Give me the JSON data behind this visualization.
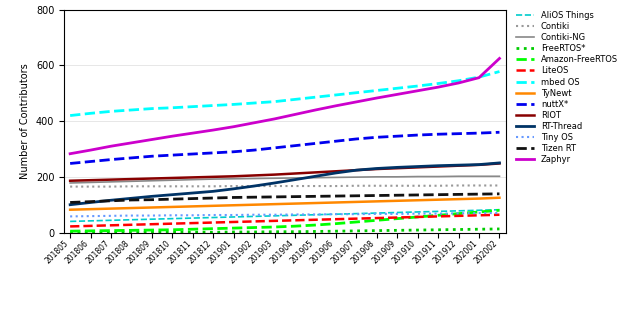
{
  "x_labels": [
    "201805",
    "201806",
    "201807",
    "201808",
    "201809",
    "201810",
    "201811",
    "201812",
    "201901",
    "201902",
    "201903",
    "201904",
    "201905",
    "201906",
    "201907",
    "201908",
    "201909",
    "201910",
    "201911",
    "201912",
    "202001",
    "202002"
  ],
  "series": {
    "AliOS Things": {
      "color": "#00CCCC",
      "linestyle": "--",
      "linewidth": 1.2,
      "values": [
        40,
        42,
        44,
        46,
        48,
        50,
        52,
        54,
        56,
        58,
        60,
        62,
        64,
        66,
        68,
        70,
        72,
        74,
        76,
        78,
        80,
        82
      ]
    },
    "Contiki": {
      "color": "#999999",
      "linestyle": ":",
      "linewidth": 1.5,
      "values": [
        165,
        165,
        165,
        166,
        166,
        166,
        166,
        166,
        167,
        167,
        167,
        167,
        167,
        167,
        168,
        168,
        168,
        168,
        168,
        169,
        169,
        169
      ]
    },
    "Contiki-NG": {
      "color": "#888888",
      "linestyle": "-",
      "linewidth": 1.2,
      "values": [
        178,
        180,
        182,
        184,
        186,
        188,
        190,
        192,
        193,
        194,
        195,
        196,
        197,
        198,
        199,
        200,
        200,
        201,
        201,
        202,
        202,
        202
      ]
    },
    "FreeRTOS*": {
      "color": "#00CC00",
      "linestyle": ":",
      "linewidth": 2.0,
      "values": [
        0,
        0,
        0,
        0,
        1,
        1,
        1,
        1,
        2,
        2,
        3,
        3,
        4,
        5,
        6,
        7,
        8,
        9,
        10,
        11,
        12,
        13
      ]
    },
    "Amazon-FreeRTOS": {
      "color": "#00FF00",
      "linestyle": "--",
      "linewidth": 2.0,
      "values": [
        5,
        6,
        7,
        8,
        9,
        10,
        12,
        14,
        16,
        18,
        20,
        23,
        27,
        32,
        38,
        44,
        50,
        56,
        62,
        68,
        74,
        80
      ]
    },
    "LiteOS": {
      "color": "#FF0000",
      "linestyle": "--",
      "linewidth": 1.8,
      "values": [
        22,
        24,
        26,
        28,
        30,
        32,
        34,
        36,
        38,
        40,
        42,
        44,
        46,
        48,
        50,
        52,
        54,
        56,
        58,
        60,
        62,
        64
      ]
    },
    "mbed OS": {
      "color": "#00FFFF",
      "linestyle": "--",
      "linewidth": 2.0,
      "values": [
        420,
        428,
        435,
        440,
        445,
        448,
        452,
        456,
        460,
        465,
        470,
        478,
        486,
        494,
        502,
        510,
        518,
        526,
        535,
        545,
        558,
        578
      ]
    },
    "TyNewt": {
      "color": "#FF8800",
      "linestyle": "-",
      "linewidth": 1.8,
      "values": [
        82,
        84,
        86,
        88,
        90,
        92,
        94,
        96,
        98,
        100,
        102,
        104,
        106,
        108,
        110,
        112,
        114,
        116,
        118,
        120,
        122,
        125
      ]
    },
    "nuttX*": {
      "color": "#0000EE",
      "linestyle": "--",
      "linewidth": 2.0,
      "values": [
        248,
        255,
        262,
        268,
        274,
        278,
        282,
        286,
        290,
        296,
        304,
        312,
        320,
        328,
        336,
        342,
        346,
        350,
        353,
        355,
        357,
        360
      ]
    },
    "RIOT": {
      "color": "#880000",
      "linestyle": "-",
      "linewidth": 1.8,
      "values": [
        186,
        188,
        190,
        192,
        194,
        196,
        198,
        200,
        202,
        205,
        208,
        212,
        216,
        220,
        224,
        228,
        231,
        234,
        237,
        240,
        243,
        248
      ]
    },
    "RT-Thread": {
      "color": "#003366",
      "linestyle": "-",
      "linewidth": 2.0,
      "values": [
        100,
        108,
        116,
        123,
        130,
        136,
        142,
        148,
        157,
        167,
        178,
        190,
        202,
        214,
        224,
        230,
        234,
        237,
        240,
        242,
        244,
        250
      ]
    },
    "Tiny OS": {
      "color": "#6699FF",
      "linestyle": ":",
      "linewidth": 1.5,
      "values": [
        58,
        59,
        60,
        61,
        61,
        62,
        62,
        63,
        63,
        64,
        64,
        65,
        65,
        66,
        66,
        67,
        67,
        68,
        68,
        69,
        70,
        70
      ]
    },
    "Tizen RT": {
      "color": "#111111",
      "linestyle": "--",
      "linewidth": 2.0,
      "values": [
        108,
        111,
        114,
        117,
        118,
        120,
        122,
        124,
        126,
        127,
        128,
        129,
        130,
        131,
        132,
        133,
        134,
        135,
        136,
        137,
        138,
        139
      ]
    },
    "Zaphyr": {
      "color": "#CC00CC",
      "linestyle": "-",
      "linewidth": 2.0,
      "values": [
        283,
        296,
        310,
        322,
        334,
        346,
        357,
        368,
        380,
        394,
        408,
        424,
        440,
        455,
        469,
        483,
        496,
        509,
        522,
        537,
        556,
        625
      ]
    }
  },
  "legend_order": [
    "AliOS Things",
    "Contiki",
    "Contiki-NG",
    "FreeRTOS*",
    "Amazon-FreeRTOS",
    "LiteOS",
    "mbed OS",
    "TyNewt",
    "nuttX*",
    "RIOT",
    "RT-Thread",
    "Tiny OS",
    "Tizen RT",
    "Zaphyr"
  ],
  "ylabel": "Number of Contributors",
  "ylim": [
    0,
    800
  ],
  "yticks": [
    0,
    200,
    400,
    600,
    800
  ],
  "figsize": [
    6.4,
    3.23
  ],
  "dpi": 100
}
